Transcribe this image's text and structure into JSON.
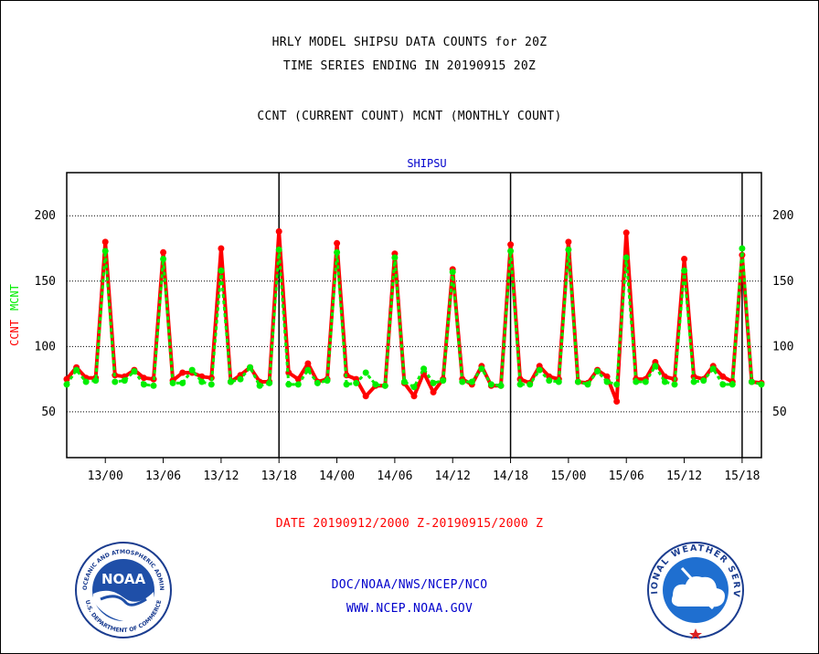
{
  "titles": {
    "line1": "HRLY MODEL SHIPSU DATA COUNTS for 20Z",
    "line2": "TIME SERIES ENDING IN 20190915 20Z",
    "line3": "CCNT (CURRENT COUNT) MCNT (MONTHLY COUNT)"
  },
  "footer": {
    "date_range": "DATE 20190912/2000 Z-20190915/2000 Z",
    "agency": "DOC/NOAA/NWS/NCEP/NCO",
    "url": "WWW.NCEP.NOAA.GOV"
  },
  "logos": {
    "noaa": {
      "label": "NOAA",
      "ring_text": "NATIONAL OCEANIC AND ATMOSPHERIC ADMINISTRATION",
      "ring_text_bottom": "U.S. DEPARTMENT OF COMMERCE"
    },
    "nws": {
      "ring_text": "NATIONAL WEATHER SERVICE"
    }
  },
  "colors": {
    "ccnt": "#ff0000",
    "mcnt": "#00ee00",
    "station": "#0000cc",
    "date_text": "#ff0000"
  },
  "chart_data": {
    "type": "line",
    "title": "SHIPSU",
    "ylabel_parts": [
      "CCNT",
      "MCNT"
    ],
    "ylim": [
      15,
      233
    ],
    "yticks": [
      50,
      100,
      150,
      200
    ],
    "x_ticks": [
      "13/00",
      "13/06",
      "13/12",
      "13/18",
      "14/00",
      "14/06",
      "14/12",
      "14/18",
      "15/00",
      "15/06",
      "15/12",
      "15/18"
    ],
    "x_start": "12/20",
    "x_end": "15/20",
    "hours": 73,
    "major_day_lines": [
      "13/18",
      "14/18",
      "15/18"
    ],
    "grid": "horizontal dotted at y ticks",
    "series": [
      {
        "name": "CCNT",
        "values": [
          75,
          84,
          76,
          76,
          180,
          78,
          77,
          82,
          76,
          75,
          172,
          74,
          80,
          80,
          77,
          76,
          175,
          73,
          78,
          84,
          73,
          73,
          188,
          80,
          75,
          87,
          73,
          75,
          179,
          78,
          75,
          62,
          70,
          70,
          171,
          72,
          62,
          80,
          65,
          75,
          159,
          75,
          71,
          85,
          70,
          70,
          178,
          75,
          72,
          85,
          77,
          75,
          180,
          73,
          72,
          82,
          77,
          58,
          187,
          75,
          75,
          88,
          77,
          75,
          167,
          77,
          75,
          85,
          77,
          73,
          170,
          73,
          72
        ]
      },
      {
        "name": "MCNT",
        "values": [
          71,
          82,
          73,
          74,
          173,
          73,
          74,
          81,
          71,
          70,
          167,
          72,
          72,
          82,
          73,
          71,
          158,
          73,
          75,
          84,
          70,
          72,
          174,
          71,
          71,
          82,
          72,
          74,
          172,
          71,
          72,
          80,
          71,
          70,
          168,
          73,
          69,
          83,
          72,
          74,
          157,
          73,
          73,
          83,
          71,
          70,
          173,
          71,
          71,
          82,
          74,
          73,
          174,
          73,
          71,
          81,
          73,
          71,
          168,
          73,
          73,
          85,
          73,
          71,
          158,
          73,
          74,
          83,
          71,
          71,
          175,
          73,
          71
        ]
      }
    ]
  }
}
